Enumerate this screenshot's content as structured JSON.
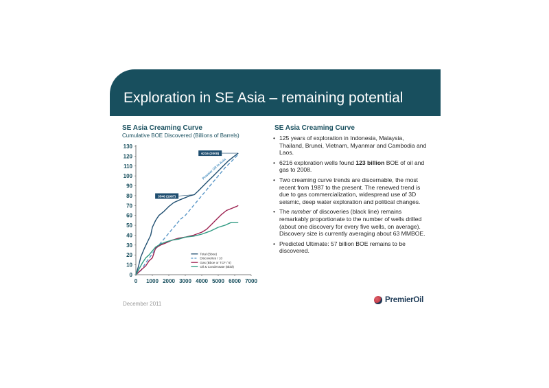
{
  "header": {
    "title": "Exploration in SE Asia – remaining potential"
  },
  "chart_data": {
    "type": "line",
    "title": "SE Asia Creaming Curve",
    "subtitle": "Cumulative BOE Discovered (Billions of Barrels)",
    "xlabel": "",
    "ylabel": "",
    "xlim": [
      0,
      7000
    ],
    "ylim": [
      0,
      130
    ],
    "xticks": [
      "0",
      "1000",
      "2000",
      "3000",
      "4000",
      "5000",
      "6000",
      "7000"
    ],
    "yticks": [
      "0",
      "10",
      "20",
      "30",
      "40",
      "50",
      "60",
      "70",
      "80",
      "90",
      "100",
      "110",
      "120",
      "130"
    ],
    "grid": false,
    "legend_position": "bottom-right",
    "series": [
      {
        "name": "Total (Bboe)",
        "color": "#1f4e70",
        "dash": "",
        "x": [
          0,
          150,
          300,
          500,
          700,
          900,
          1000,
          1200,
          1400,
          1700,
          2000,
          2300,
          2700,
          3000,
          3300,
          3546,
          3800,
          4100,
          4400,
          4700,
          5000,
          5300,
          5600,
          5900,
          6216
        ],
        "y": [
          0,
          8,
          18,
          26,
          33,
          40,
          48,
          55,
          60,
          64,
          69,
          73,
          76,
          78,
          80,
          81,
          85,
          90,
          95,
          100,
          105,
          110,
          115,
          119,
          123
        ]
      },
      {
        "name": "Discoveries / 10",
        "color": "#5a97c7",
        "dash": "5,3",
        "x": [
          0,
          300,
          600,
          900,
          1200,
          1500,
          1800,
          2100,
          2400,
          2700,
          3000,
          3300,
          3600,
          3900,
          4200,
          4500,
          4800,
          5100,
          5400,
          5700,
          6000,
          6216
        ],
        "y": [
          0,
          4,
          12,
          19,
          26,
          32,
          38,
          44,
          50,
          56,
          60,
          66,
          72,
          78,
          84,
          90,
          96,
          102,
          108,
          113,
          118,
          122
        ]
      },
      {
        "name": "Gas (Bboe or TCF / 6)",
        "color": "#9c2150",
        "dash": "",
        "x": [
          0,
          200,
          400,
          600,
          800,
          1000,
          1200,
          1500,
          1800,
          2200,
          2600,
          3000,
          3500,
          4000,
          4300,
          4600,
          4900,
          5200,
          5500,
          5800,
          6100,
          6216
        ],
        "y": [
          0,
          3,
          6,
          9,
          14,
          17,
          27,
          30,
          32,
          35,
          37,
          38,
          40,
          43,
          46,
          51,
          56,
          61,
          65,
          67,
          69,
          70
        ]
      },
      {
        "name": "Oil & Condensate (Bbbl)",
        "color": "#2f9a82",
        "dash": "",
        "x": [
          0,
          200,
          400,
          600,
          800,
          1000,
          1200,
          1500,
          1800,
          2200,
          2600,
          3000,
          3500,
          4000,
          4500,
          5000,
          5400,
          5800,
          6216
        ],
        "y": [
          0,
          6,
          12,
          17,
          20,
          24,
          28,
          31,
          33,
          35,
          36,
          38,
          39,
          41,
          44,
          48,
          50,
          53,
          53
        ]
      }
    ],
    "annotations": [
      {
        "text": "6216 (2008)",
        "x": 6216,
        "y": 123
      },
      {
        "text": "3546 (1987)",
        "x": 3546,
        "y": 81
      },
      {
        "text": "Premier Oil in Asia",
        "x": 4100,
        "y": 96
      }
    ]
  },
  "right": {
    "title": "SE Asia Creaming Curve",
    "bullets": [
      {
        "parts": [
          {
            "t": "125 years of exploration in Indonesia, Malaysia, Thailand, Brunei, Vietnam, Myanmar and Cambodia and Laos.",
            "s": ""
          }
        ]
      },
      {
        "parts": [
          {
            "t": "6216 exploration wells found ",
            "s": ""
          },
          {
            "t": "123 billion",
            "s": "b"
          },
          {
            "t": " BOE of oil and gas to 2008.",
            "s": ""
          }
        ]
      },
      {
        "parts": [
          {
            "t": "Two creaming curve trends are discernable, the most recent from 1987 to the present. The renewed trend is due to gas commercialization, widespread use of 3D seismic, deep water exploration and political changes.",
            "s": ""
          }
        ]
      },
      {
        "parts": [
          {
            "t": "The ",
            "s": ""
          },
          {
            "t": "number",
            "s": "i"
          },
          {
            "t": " of discoveries (black line) remains remarkably proportionate to the number of wells drilled (about one discovery for every five wells, on average). Discovery size is currently averaging about 63 MMBOE.",
            "s": ""
          }
        ]
      },
      {
        "parts": [
          {
            "t": "Predicted Ultimate: 57 billion BOE remains to be discovered.",
            "s": ""
          }
        ]
      }
    ],
    "bullet_char": "•"
  },
  "footer": {
    "date": "December 2011",
    "logo_text": "PremierOil"
  }
}
